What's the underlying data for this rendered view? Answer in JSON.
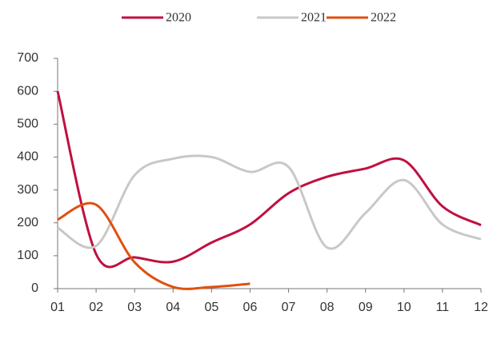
{
  "chart_data": {
    "type": "line",
    "categories": [
      "01",
      "02",
      "03",
      "04",
      "05",
      "06",
      "07",
      "08",
      "09",
      "10",
      "11",
      "12"
    ],
    "series": [
      {
        "name": "2020",
        "color": "#c0103f",
        "values": [
          600,
          105,
          95,
          82,
          140,
          195,
          290,
          340,
          365,
          390,
          250,
          193
        ]
      },
      {
        "name": "2021",
        "color": "#c8c8c8",
        "values": [
          185,
          130,
          345,
          395,
          400,
          355,
          370,
          125,
          230,
          330,
          195,
          150
        ]
      },
      {
        "name": "2022",
        "color": "#e0500f",
        "values": [
          210,
          255,
          80,
          5,
          5,
          15,
          null,
          null,
          null,
          null,
          null,
          null
        ]
      }
    ],
    "ylim": [
      0,
      700
    ],
    "yticks": [
      0,
      100,
      200,
      300,
      400,
      500,
      600,
      700
    ],
    "legend": "top",
    "smooth": true
  }
}
